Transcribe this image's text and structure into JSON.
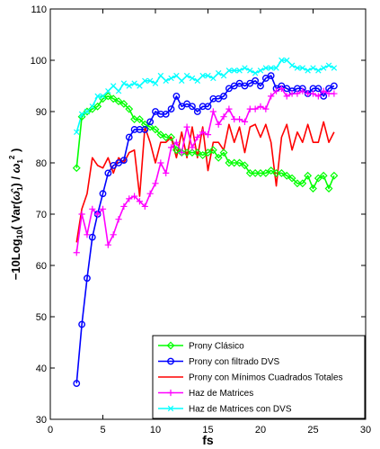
{
  "chart_data": {
    "type": "line",
    "xlabel": "fs",
    "ylabel": "-10Log10(Var(ω1)/ω1^2)",
    "xlim": [
      0,
      30
    ],
    "ylim": [
      30,
      110
    ],
    "xticks": [
      0,
      5,
      10,
      15,
      20,
      25,
      30
    ],
    "yticks": [
      30,
      40,
      50,
      60,
      70,
      80,
      90,
      100,
      110
    ],
    "grid": false,
    "legend_position": "bottom-right",
    "series": [
      {
        "name": "Prony Clásico",
        "color": "#00ff00",
        "marker": "diamond",
        "x": [
          2.5,
          3,
          3.5,
          4,
          4.5,
          5,
          5.5,
          6,
          6.5,
          7,
          7.5,
          8,
          8.5,
          9,
          9.5,
          10,
          10.5,
          11,
          11.5,
          12,
          12.5,
          13,
          13.5,
          14,
          14.5,
          15,
          15.5,
          16,
          16.5,
          17,
          17.5,
          18,
          18.5,
          19,
          19.5,
          20,
          20.5,
          21,
          21.5,
          22,
          22.5,
          23,
          23.5,
          24,
          24.5,
          25,
          25.5,
          26,
          26.5,
          27
        ],
        "y": [
          79,
          89,
          90,
          90.5,
          91,
          92.5,
          93,
          92.5,
          92,
          91.5,
          90.5,
          88.5,
          88.5,
          87.5,
          87,
          86.5,
          85.5,
          85,
          85,
          82.5,
          82,
          82,
          82,
          82,
          81.5,
          82,
          82.5,
          81,
          82,
          80,
          80,
          80,
          79.5,
          78,
          78,
          78,
          78,
          78.5,
          78,
          78,
          77.5,
          77,
          76,
          76,
          77.5,
          75,
          77,
          77.5,
          75,
          77.5
        ]
      },
      {
        "name": "Prony con filtrado DVS",
        "color": "#0000ff",
        "marker": "circle",
        "x": [
          2.5,
          3,
          3.5,
          4,
          4.5,
          5,
          5.5,
          6,
          6.5,
          7,
          7.5,
          8,
          8.5,
          9,
          9.5,
          10,
          10.5,
          11,
          11.5,
          12,
          12.5,
          13,
          13.5,
          14,
          14.5,
          15,
          15.5,
          16,
          16.5,
          17,
          17.5,
          18,
          18.5,
          19,
          19.5,
          20,
          20.5,
          21,
          21.5,
          22,
          22.5,
          23,
          23.5,
          24,
          24.5,
          25,
          25.5,
          26,
          26.5,
          27
        ],
        "y": [
          37,
          48.5,
          57.5,
          65.5,
          70,
          74,
          78,
          79.5,
          80,
          80.5,
          85,
          86.5,
          86.5,
          86.5,
          88,
          90,
          89.5,
          89.5,
          90.5,
          93,
          91,
          91.5,
          91,
          90,
          91,
          91,
          92.5,
          92.5,
          93,
          94.5,
          95,
          95.5,
          95,
          95.5,
          96,
          95,
          96.5,
          97,
          94.5,
          95,
          94.5,
          94,
          94.5,
          94.5,
          93.5,
          94.5,
          94.5,
          93,
          94.5,
          95
        ]
      },
      {
        "name": "Prony con Mínimos Cuadrados Totales",
        "color": "#ff0000",
        "marker": "none",
        "x": [
          2.5,
          3,
          3.5,
          4,
          4.5,
          5,
          5.5,
          6,
          6.5,
          7,
          7.5,
          8,
          8.5,
          9,
          9.5,
          10,
          10.5,
          11,
          11.5,
          12,
          12.5,
          13,
          13.5,
          14,
          14.5,
          15,
          15.5,
          16,
          16.5,
          17,
          17.5,
          18,
          18.5,
          19,
          19.5,
          20,
          20.5,
          21,
          21.5,
          22,
          22.5,
          23,
          23.5,
          24,
          24.5,
          25,
          25.5,
          26,
          26.5,
          27
        ],
        "y": [
          64.5,
          71,
          74,
          81,
          79.5,
          79,
          81,
          78,
          81,
          80,
          82,
          82.5,
          73.5,
          87,
          84,
          80,
          84,
          84,
          85,
          81,
          86,
          81,
          87,
          81,
          87,
          78.5,
          84,
          84,
          82.5,
          87.5,
          84,
          87,
          82,
          87,
          87.5,
          85,
          87.5,
          84,
          75.5,
          85,
          87.5,
          82.5,
          86,
          84,
          87.5,
          84,
          84,
          88,
          84,
          86
        ]
      },
      {
        "name": "Haz de Matrices",
        "color": "#ff00ff",
        "marker": "plus",
        "x": [
          2.5,
          3,
          3.5,
          4,
          4.5,
          5,
          5.5,
          6,
          6.5,
          7,
          7.5,
          8,
          8.5,
          9,
          9.5,
          10,
          10.5,
          11,
          11.5,
          12,
          12.5,
          13,
          13.5,
          14,
          14.5,
          15,
          15.5,
          16,
          16.5,
          17,
          17.5,
          18,
          18.5,
          19,
          19.5,
          20,
          20.5,
          21,
          21.5,
          22,
          22.5,
          23,
          23.5,
          24,
          24.5,
          25,
          25.5,
          26,
          26.5,
          27
        ],
        "y": [
          62.5,
          70,
          66,
          71,
          70,
          71,
          64,
          66,
          69,
          71.5,
          73,
          73.5,
          72.5,
          71.5,
          74,
          76,
          80,
          78,
          83,
          84,
          82,
          87,
          83,
          85,
          86,
          85.5,
          90,
          87.5,
          89,
          90.5,
          88.5,
          88.5,
          88,
          90.5,
          90.5,
          91,
          90.5,
          93,
          94,
          94.5,
          93,
          93.5,
          93.5,
          94,
          93.5,
          93.5,
          93,
          94,
          93.5,
          93.5
        ]
      },
      {
        "name": "Haz de Matrices con DVS",
        "color": "#00ffff",
        "marker": "x",
        "x": [
          2.5,
          3,
          3.5,
          4,
          4.5,
          5,
          5.5,
          6,
          6.5,
          7,
          7.5,
          8,
          8.5,
          9,
          9.5,
          10,
          10.5,
          11,
          11.5,
          12,
          12.5,
          13,
          13.5,
          14,
          14.5,
          15,
          15.5,
          16,
          16.5,
          17,
          17.5,
          18,
          18.5,
          19,
          19.5,
          20,
          20.5,
          21,
          21.5,
          22,
          22.5,
          23,
          23.5,
          24,
          24.5,
          25,
          25.5,
          26,
          26.5,
          27
        ],
        "y": [
          86,
          89.5,
          90,
          91,
          93,
          93,
          94,
          95,
          94,
          95.5,
          95,
          95.5,
          95,
          96,
          96,
          95.5,
          97,
          96,
          96.5,
          97,
          96,
          97,
          96.5,
          96,
          97,
          97,
          96.5,
          97.5,
          97,
          98,
          98,
          98,
          98.5,
          98,
          97.5,
          98,
          98.5,
          98.5,
          98.5,
          100,
          100,
          99,
          98.5,
          98.5,
          98,
          98.5,
          98,
          98.5,
          99,
          98.5
        ]
      }
    ]
  }
}
